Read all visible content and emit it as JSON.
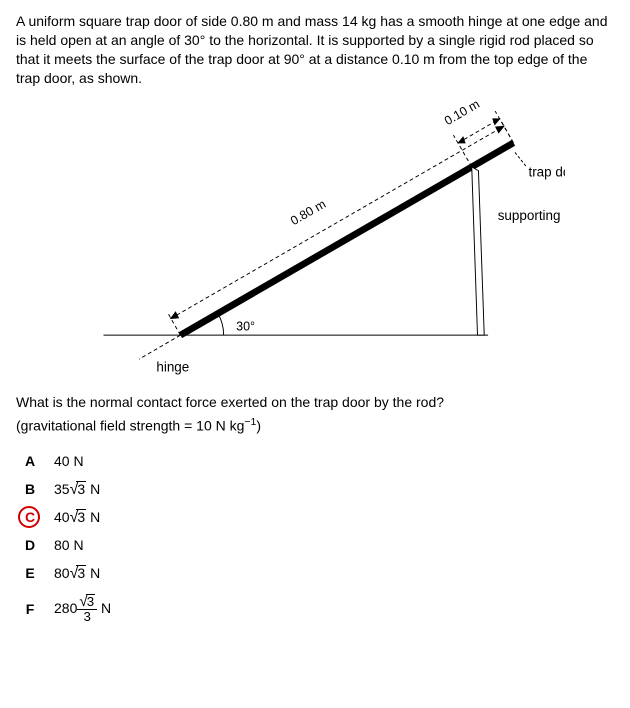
{
  "question": {
    "stem": "A uniform square trap door of side 0.80 m and mass 14 kg has a smooth hinge at one edge and is held open at an angle of 30° to the horizontal. It is supported by a single rigid rod placed so that it meets the surface of the trap door at 90° at a distance 0.10 m from the top edge of the trap door, as shown.",
    "followup": "What is the normal contact force exerted on the trap door by the rod?",
    "given_html": "(gravitational field strength = 10 N kg<sup>−1</sup>)"
  },
  "diagram": {
    "type": "diagram",
    "door_length_m": 0.8,
    "rod_offset_m": 0.1,
    "angle_deg": 30,
    "labels": {
      "door_length": "0.80 m",
      "rod_offset": "0.10 m",
      "angle": "30°",
      "hinge": "hinge",
      "trap_door": "trap door",
      "supporting_rod": "supporting rod"
    },
    "colors": {
      "line": "#000000",
      "door_fill": "#000000",
      "rod_fill": "#ffffff",
      "background": "#ffffff"
    },
    "stroke_width": {
      "thin": 1,
      "dash": 1,
      "door": 6,
      "rod_outline": 1
    }
  },
  "options": {
    "correct": "C",
    "correct_color": "#d40000",
    "items": [
      {
        "letter": "A",
        "html": "40 N"
      },
      {
        "letter": "B",
        "html": "35<span class=\"sqrt\"><span class=\"surd\">√</span><span class=\"radicand\">3</span></span> N"
      },
      {
        "letter": "C",
        "html": "40<span class=\"sqrt\"><span class=\"surd\">√</span><span class=\"radicand\">3</span></span> N"
      },
      {
        "letter": "D",
        "html": "80 N"
      },
      {
        "letter": "E",
        "html": "80<span class=\"sqrt\"><span class=\"surd\">√</span><span class=\"radicand\">3</span></span> N"
      },
      {
        "letter": "F",
        "html": "280<span class=\"frac\"><span class=\"num\"><span class=\"sqrt\"><span class=\"surd\">√</span><span class=\"radicand\">3</span></span></span><span class=\"den\">3</span></span> N"
      }
    ]
  }
}
